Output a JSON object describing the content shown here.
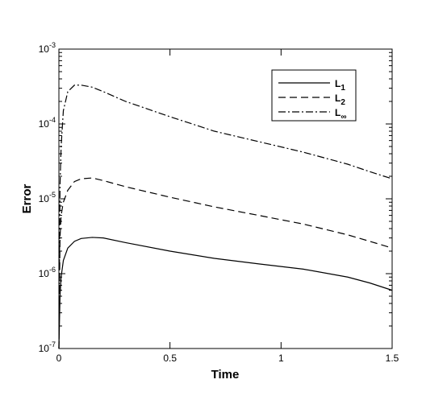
{
  "chart_data": {
    "type": "line",
    "xlabel": "Time",
    "ylabel": "Error",
    "x": [
      0,
      0.005,
      0.01,
      0.02,
      0.04,
      0.07,
      0.1,
      0.15,
      0.2,
      0.3,
      0.5,
      0.7,
      0.9,
      1.1,
      1.3,
      1.4,
      1.5
    ],
    "series": [
      {
        "name": "L1",
        "color": "#000000",
        "dash": "solid",
        "values": [
          1e-07,
          5e-07,
          9e-07,
          1.5e-06,
          2.2e-06,
          2.7e-06,
          2.95e-06,
          3.05e-06,
          3e-06,
          2.6e-06,
          2e-06,
          1.6e-06,
          1.35e-06,
          1.15e-06,
          9e-07,
          7.5e-07,
          6e-07
        ]
      },
      {
        "name": "L2",
        "color": "#000000",
        "dash": "dashed",
        "values": [
          1e-07,
          3e-06,
          6e-06,
          9e-06,
          1.3e-05,
          1.7e-05,
          1.85e-05,
          1.9e-05,
          1.75e-05,
          1.45e-05,
          1.05e-05,
          7.8e-06,
          6e-06,
          4.6e-06,
          3.3e-06,
          2.7e-06,
          2.2e-06
        ]
      },
      {
        "name": "L∞",
        "color": "#000000",
        "dash": "dashdot",
        "values": [
          1e-07,
          1.5e-05,
          5e-05,
          0.00015,
          0.00027,
          0.00033,
          0.00033,
          0.00031,
          0.00027,
          0.0002,
          0.000125,
          8e-05,
          5.8e-05,
          4.2e-05,
          2.9e-05,
          2.3e-05,
          1.85e-05
        ]
      }
    ],
    "xlim": [
      0,
      1.5
    ],
    "xticks": [
      0,
      0.5,
      1,
      1.5
    ],
    "ylim": [
      1e-07,
      0.001
    ],
    "ylog": true,
    "yticks": [
      {
        "value": 1e-07,
        "label": "10-7"
      },
      {
        "value": 1e-06,
        "label": "10-6"
      },
      {
        "value": 1e-05,
        "label": "10-5"
      },
      {
        "value": 0.0001,
        "label": "10-4"
      },
      {
        "value": 0.001,
        "label": "10-3"
      }
    ],
    "legend": "upper right"
  }
}
